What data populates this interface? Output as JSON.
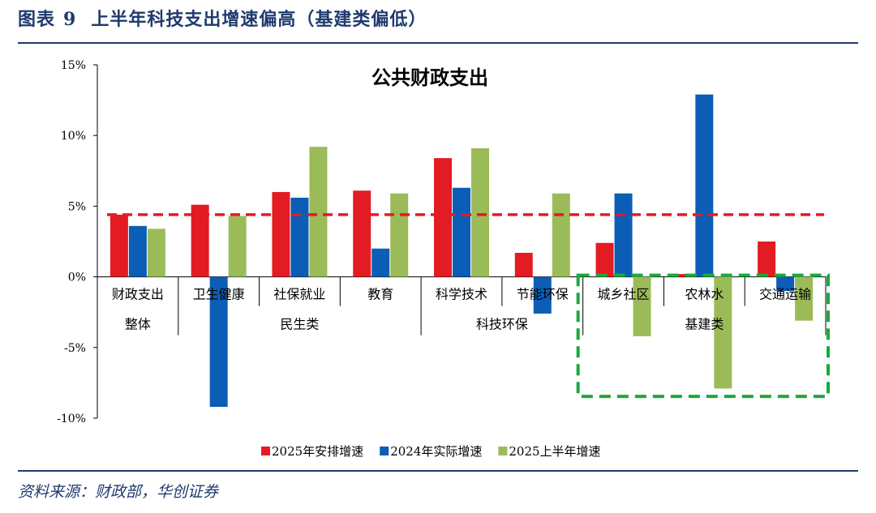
{
  "figure": {
    "label": "图表",
    "number": "9",
    "title": "上半年科技支出增速偏高（基建类偏低）"
  },
  "source": "资料来源：财政部，华创证券",
  "colors": {
    "s2025plan": "#e31b23",
    "s2024actual": "#0c5db5",
    "s2025h1": "#9bbb59",
    "refline": "#e31b23",
    "highlight": "#1aaa3c",
    "navy": "#1f3a6e"
  },
  "chart_data": {
    "type": "bar",
    "title": "公共财政支出",
    "ylim": [
      -10,
      15
    ],
    "yticks": [
      -10,
      -5,
      0,
      5,
      10,
      15
    ],
    "ytick_labels": [
      "-10%",
      "-5%",
      "0%",
      "5%",
      "10%",
      "15%"
    ],
    "categories": [
      "财政支出",
      "卫生健康",
      "社保就业",
      "教育",
      "科学技术",
      "节能环保",
      "城乡社区",
      "农林水",
      "交通运输"
    ],
    "groups": [
      {
        "label": "整体",
        "start": 0,
        "end": 0
      },
      {
        "label": "民生类",
        "start": 1,
        "end": 3
      },
      {
        "label": "科技环保",
        "start": 4,
        "end": 5
      },
      {
        "label": "基建类",
        "start": 6,
        "end": 8
      }
    ],
    "series": [
      {
        "name": "2025年安排增速",
        "color_key": "s2025plan",
        "values": [
          4.4,
          5.1,
          6.0,
          6.1,
          8.4,
          1.7,
          2.4,
          0.2,
          2.5
        ]
      },
      {
        "name": "2024年实际增速",
        "color_key": "s2024actual",
        "values": [
          3.6,
          -9.2,
          5.6,
          2.0,
          6.3,
          -2.6,
          5.9,
          12.9,
          -1.0
        ]
      },
      {
        "name": "2025上半年增速",
        "color_key": "s2025h1",
        "values": [
          3.4,
          4.3,
          9.2,
          5.9,
          9.1,
          5.9,
          -4.2,
          -7.9,
          -3.1
        ]
      }
    ],
    "reference_line": {
      "value": 4.4,
      "style": "dashed"
    },
    "highlight": {
      "start": 6,
      "end": 8,
      "style": "dashed"
    }
  }
}
